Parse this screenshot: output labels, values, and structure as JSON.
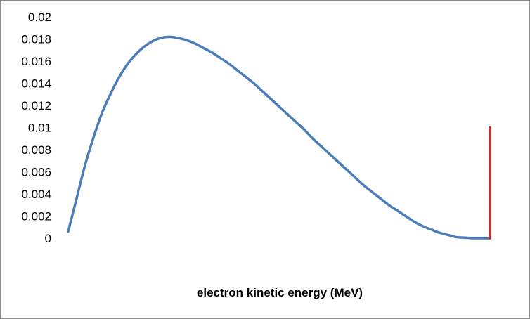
{
  "chart_data": {
    "type": "line",
    "title": "",
    "xlabel": "electron kinetic energy (MeV)",
    "ylabel": "",
    "xlim": [
      0,
      1
    ],
    "ylim": [
      0,
      0.02
    ],
    "yticks": [
      "0",
      "0.002",
      "0.004",
      "0.006",
      "0.008",
      "0.01",
      "0.012",
      "0.014",
      "0.016",
      "0.018",
      "0.02"
    ],
    "grid": false,
    "legend": "none",
    "series": [
      {
        "color": "#4a7ebb",
        "x": [
          0.0,
          0.02,
          0.04,
          0.06,
          0.08,
          0.1,
          0.12,
          0.14,
          0.16,
          0.18,
          0.2,
          0.22,
          0.24,
          0.26,
          0.28,
          0.3,
          0.32,
          0.34,
          0.36,
          0.38,
          0.4,
          0.42,
          0.44,
          0.46,
          0.48,
          0.5,
          0.52,
          0.54,
          0.56,
          0.58,
          0.6,
          0.62,
          0.64,
          0.66,
          0.68,
          0.7,
          0.72,
          0.74,
          0.76,
          0.78,
          0.8,
          0.82,
          0.84,
          0.86,
          0.88,
          0.9,
          0.92,
          0.94,
          0.96,
          0.98,
          1.0
        ],
        "values": [
          0.0006,
          0.0036,
          0.0066,
          0.0091,
          0.0113,
          0.013,
          0.0145,
          0.0157,
          0.0166,
          0.0173,
          0.0178,
          0.0181,
          0.0182,
          0.0181,
          0.0179,
          0.0176,
          0.0172,
          0.0168,
          0.0163,
          0.0158,
          0.0152,
          0.0146,
          0.014,
          0.0133,
          0.0126,
          0.0119,
          0.0112,
          0.0105,
          0.0098,
          0.009,
          0.0083,
          0.0076,
          0.0069,
          0.0062,
          0.0055,
          0.0048,
          0.0042,
          0.0036,
          0.003,
          0.0025,
          0.002,
          0.0015,
          0.0011,
          0.0008,
          0.0005,
          0.0003,
          0.0001,
          5e-05,
          0.0,
          0.0,
          0.0
        ]
      },
      {
        "color": "#c0312b",
        "x": [
          1.0,
          1.0
        ],
        "values": [
          0,
          0.01
        ]
      }
    ]
  }
}
